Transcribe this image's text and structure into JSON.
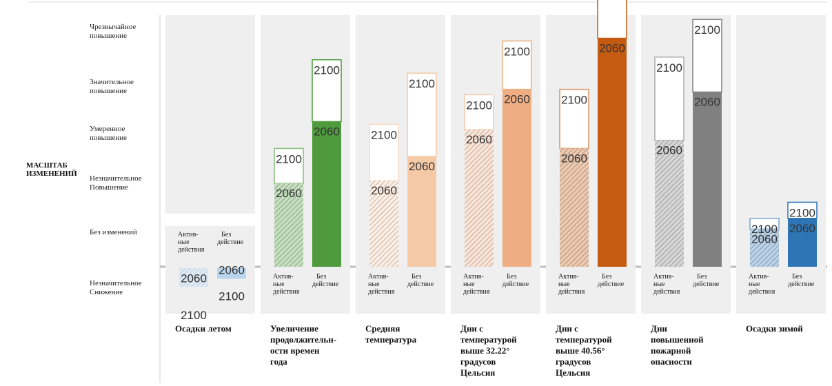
{
  "chart_data": {
    "type": "bar",
    "axis_title_lines": [
      "МАСШТАБ",
      "ИЗМЕНЕНИЙ"
    ],
    "scale_levels": [
      {
        "value": 5,
        "lines": [
          "Чрезвычайное",
          "повышение"
        ]
      },
      {
        "value": 4,
        "lines": [
          "Значительное",
          "повышение"
        ]
      },
      {
        "value": 3,
        "lines": [
          "Умеренное",
          "повышение"
        ]
      },
      {
        "value": 2,
        "lines": [
          "Незначительное",
          "Повышение"
        ]
      },
      {
        "value": 1,
        "lines": [
          "Без изменений"
        ]
      },
      {
        "value": 0,
        "lines": [
          "Незначительное",
          "Снижение"
        ]
      }
    ],
    "scenario_labels": {
      "active": [
        "Актив-",
        "ные",
        "действия"
      ],
      "none": [
        "Без",
        "действие"
      ]
    },
    "year_labels": {
      "y2060": "2060",
      "y2100": "2100"
    },
    "categories": [
      {
        "lines": [
          "Осадки летом"
        ],
        "color": "#9dc3e6",
        "active": {
          "y2060": -0.35,
          "y2100": -1.0
        },
        "none": {
          "y2060": -0.2,
          "y2100": -0.65
        }
      },
      {
        "lines": [
          "Увеличение",
          "продолжительн-",
          "ости времен",
          "года"
        ],
        "color": "#4e9a3c",
        "active": {
          "y2060": 1.55,
          "y2100": 2.2
        },
        "none": {
          "y2060": 2.7,
          "y2100": 3.85
        }
      },
      {
        "lines": [
          "Средняя",
          "температура"
        ],
        "color": "#f5c9a6",
        "active": {
          "y2060": 1.6,
          "y2100": 2.65
        },
        "none": {
          "y2060": 2.05,
          "y2100": 3.6
        }
      },
      {
        "lines": [
          "Дни с",
          "температурой",
          "выше 32.22°",
          "градусов",
          "Цельсия"
        ],
        "color": "#efad83",
        "active": {
          "y2060": 2.55,
          "y2100": 3.2
        },
        "none": {
          "y2060": 3.3,
          "y2100": 4.2
        }
      },
      {
        "lines": [
          "Дни с",
          "температурой",
          "выше 40.56°",
          "градусов",
          "Цельсия"
        ],
        "color": "#c55a11",
        "active": {
          "y2060": 2.2,
          "y2100": 3.3
        },
        "none": {
          "y2060": 4.25,
          "y2100": 5.35
        }
      },
      {
        "lines": [
          "Дни",
          "повышенной",
          "пожарной",
          "опасности"
        ],
        "color": "#808080",
        "active": {
          "y2060": 2.35,
          "y2100": 3.9
        },
        "none": {
          "y2060": 3.25,
          "y2100": 4.6
        }
      },
      {
        "lines": [
          "Осадки зимой"
        ],
        "color": "#2e75b6",
        "active": {
          "y2060": 0.7,
          "y2100": 0.9
        },
        "none": {
          "y2060": 0.9,
          "y2100": 1.2
        }
      }
    ]
  }
}
